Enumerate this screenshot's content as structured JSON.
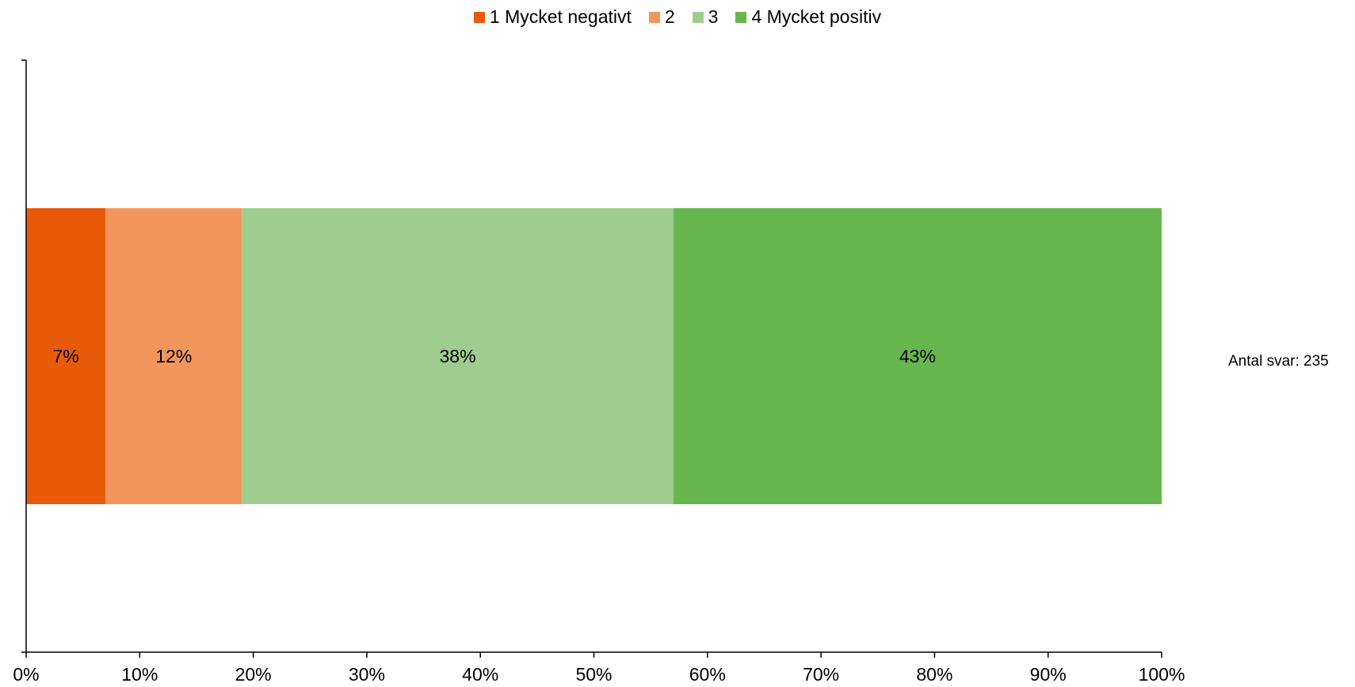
{
  "chart_data": {
    "type": "bar",
    "orientation": "horizontal",
    "stacked": true,
    "categories": [
      ""
    ],
    "series": [
      {
        "name": "1 Mycket negativt",
        "values": [
          7
        ],
        "label": "7%",
        "color": "#e85a0a"
      },
      {
        "name": "2",
        "values": [
          12
        ],
        "label": "12%",
        "color": "#f2965e"
      },
      {
        "name": "3",
        "values": [
          38
        ],
        "label": "38%",
        "color": "#9fcd8f"
      },
      {
        "name": "4 Mycket positiv",
        "values": [
          43
        ],
        "label": "43%",
        "color": "#67b54d"
      }
    ],
    "xlim": [
      0,
      100
    ],
    "x_ticks": [
      "0%",
      "10%",
      "20%",
      "30%",
      "40%",
      "50%",
      "60%",
      "70%",
      "80%",
      "90%",
      "100%"
    ],
    "legend_position": "top-center",
    "grid": false,
    "annotation": "Antal svar: 235"
  }
}
